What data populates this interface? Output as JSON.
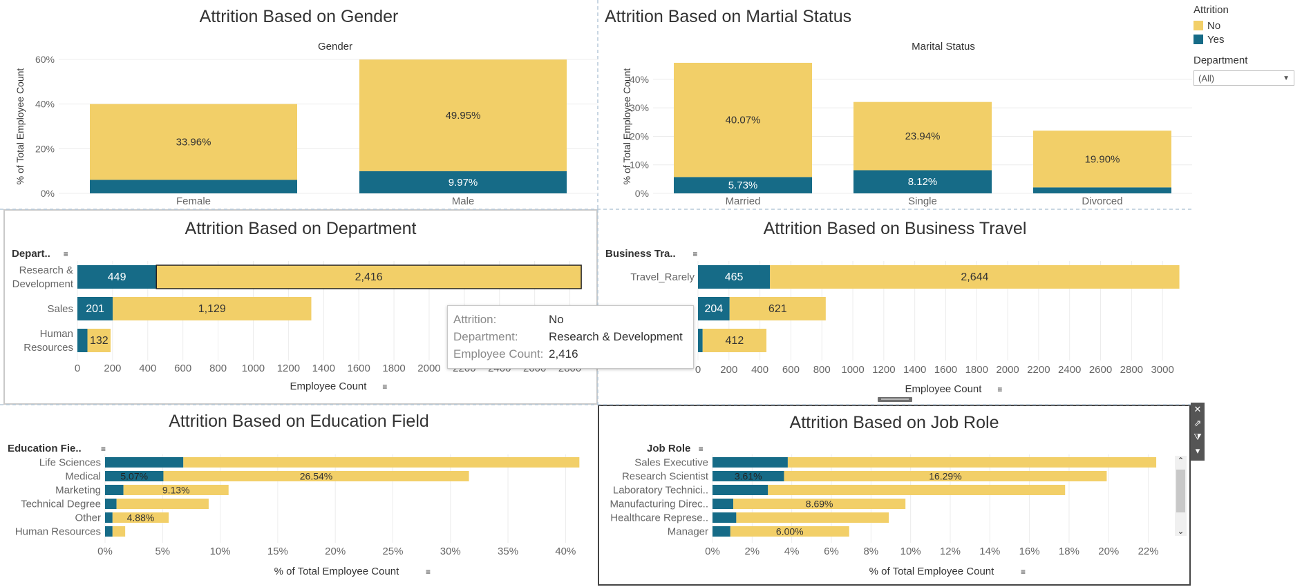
{
  "colors": {
    "no": "#f2cf68",
    "yes": "#166b87",
    "grid": "#ececec",
    "axis": "#666666",
    "label": "#333333"
  },
  "legend": {
    "title": "Attrition",
    "items": [
      "No",
      "Yes"
    ]
  },
  "filter": {
    "label": "Department",
    "value": "(All)"
  },
  "tooltip": {
    "rows": [
      {
        "key": "Attrition:",
        "value": "No"
      },
      {
        "key": "Department:",
        "value": "Research & Development"
      },
      {
        "key": "Employee Count:",
        "value": "2,416"
      }
    ]
  },
  "chart_data": [
    {
      "id": "gender",
      "type": "bar",
      "title": "Attrition Based on Gender",
      "header": "Gender",
      "ylabel": "% of Total Employee Count",
      "ylim": [
        0,
        60
      ],
      "yticks": [
        0,
        20,
        40,
        60
      ],
      "ytick_labels": [
        "0%",
        "20%",
        "40%",
        "60%"
      ],
      "categories": [
        "Female",
        "Male"
      ],
      "series": [
        {
          "name": "Yes",
          "values": [
            6.05,
            9.97
          ],
          "labels": [
            "",
            "9.97%"
          ]
        },
        {
          "name": "No",
          "values": [
            33.96,
            49.95
          ],
          "labels": [
            "33.96%",
            "49.95%"
          ]
        }
      ]
    },
    {
      "id": "marital",
      "type": "bar",
      "title": "Attrition Based on Martial Status",
      "header": "Marital Status",
      "ylabel": "% of Total Employee Count",
      "ylim": [
        0,
        47
      ],
      "yticks": [
        0,
        10,
        20,
        30,
        40
      ],
      "ytick_labels": [
        "0%",
        "10%",
        "20%",
        "30%",
        "40%"
      ],
      "categories": [
        "Married",
        "Single",
        "Divorced"
      ],
      "series": [
        {
          "name": "Yes",
          "values": [
            5.73,
            8.12,
            2.1
          ],
          "labels": [
            "5.73%",
            "8.12%",
            ""
          ]
        },
        {
          "name": "No",
          "values": [
            40.07,
            23.94,
            19.9
          ],
          "labels": [
            "40.07%",
            "23.94%",
            "19.90%"
          ]
        }
      ]
    },
    {
      "id": "department",
      "type": "bar",
      "orientation": "horizontal",
      "title": "Attrition Based on Department",
      "header": "Depart..",
      "xlabel": "Employee Count",
      "xlim": [
        0,
        2900
      ],
      "xticks": [
        0,
        200,
        400,
        600,
        800,
        1000,
        1200,
        1400,
        1600,
        1800,
        2000,
        2200,
        2400,
        2600,
        2800
      ],
      "xtick_labels": [
        "0",
        "200",
        "400",
        "600",
        "800",
        "1000",
        "1200",
        "1400",
        "1600",
        "1800",
        "2000",
        "2200",
        "2400",
        "2600",
        "2800"
      ],
      "categories": [
        "Research & Development",
        "Sales",
        "Human Resources"
      ],
      "category_lines": [
        [
          "Research &",
          "Development"
        ],
        [
          "Sales"
        ],
        [
          "Human",
          "Resources"
        ]
      ],
      "series": [
        {
          "name": "Yes",
          "values": [
            449,
            201,
            57
          ],
          "labels": [
            "449",
            "201",
            ""
          ]
        },
        {
          "name": "No",
          "values": [
            2416,
            1129,
            132
          ],
          "labels": [
            "2,416",
            "1,129",
            "132"
          ]
        }
      ]
    },
    {
      "id": "travel",
      "type": "bar",
      "orientation": "horizontal",
      "title": "Attrition Based on Business Travel",
      "header": "Business Tra..",
      "xlabel": "Employee Count",
      "xlim": [
        0,
        3160
      ],
      "xticks": [
        0,
        200,
        400,
        600,
        800,
        1000,
        1200,
        1400,
        1600,
        1800,
        2000,
        2200,
        2400,
        2600,
        2800,
        3000
      ],
      "xtick_labels": [
        "0",
        "200",
        "400",
        "600",
        "800",
        "1000",
        "1200",
        "1400",
        "1600",
        "1800",
        "2000",
        "2200",
        "2400",
        "2600",
        "2800",
        "3000"
      ],
      "categories": [
        "Travel_Rarely",
        "",
        ""
      ],
      "category_lines": [
        [
          "Travel_Rarely"
        ],
        [],
        []
      ],
      "series": [
        {
          "name": "Yes",
          "values": [
            465,
            204,
            30
          ],
          "labels": [
            "465",
            "204",
            ""
          ]
        },
        {
          "name": "No",
          "values": [
            2644,
            621,
            412
          ],
          "labels": [
            "2,644",
            "621",
            "412"
          ]
        }
      ]
    },
    {
      "id": "education",
      "type": "bar",
      "orientation": "horizontal",
      "title": "Attrition Based on Education Field",
      "header": "Education Fie..",
      "xlabel": "% of Total Employee Count",
      "xlim": [
        0,
        42.5
      ],
      "xticks": [
        0,
        5,
        10,
        15,
        20,
        25,
        30,
        35,
        40
      ],
      "xtick_labels": [
        "0%",
        "5%",
        "10%",
        "15%",
        "20%",
        "25%",
        "30%",
        "35%",
        "40%"
      ],
      "categories": [
        "Life Sciences",
        "Medical",
        "Marketing",
        "Technical Degree",
        "Other",
        "Human Resources"
      ],
      "category_lines": [
        [
          "Life Sciences"
        ],
        [
          "Medical"
        ],
        [
          "Marketing"
        ],
        [
          "Technical Degree"
        ],
        [
          "Other"
        ],
        [
          "Human Resources"
        ]
      ],
      "series": [
        {
          "name": "Yes",
          "values": [
            6.8,
            5.07,
            1.6,
            1.0,
            0.65,
            0.65
          ],
          "labels": [
            "",
            "5.07%",
            "",
            "",
            "",
            ""
          ]
        },
        {
          "name": "No",
          "values": [
            34.4,
            26.54,
            9.13,
            8.0,
            4.88,
            1.1
          ],
          "labels": [
            "",
            "26.54%",
            "9.13%",
            "",
            "4.88%",
            ""
          ]
        }
      ]
    },
    {
      "id": "jobrole",
      "type": "bar",
      "orientation": "horizontal",
      "title": "Attrition Based on Job Role",
      "header": "Job Role",
      "xlabel": "% of Total Employee Count",
      "xlim": [
        0,
        23.2
      ],
      "xticks": [
        0,
        2,
        4,
        6,
        8,
        10,
        12,
        14,
        16,
        18,
        20,
        22
      ],
      "xtick_labels": [
        "0%",
        "2%",
        "4%",
        "6%",
        "8%",
        "10%",
        "12%",
        "14%",
        "16%",
        "18%",
        "20%",
        "22%"
      ],
      "categories": [
        "Sales Executive",
        "Research Scientist",
        "Laboratory Technici..",
        "Manufacturing Direc..",
        "Healthcare Represe..",
        "Manager"
      ],
      "category_lines": [
        [
          "Sales Executive"
        ],
        [
          "Research Scientist"
        ],
        [
          "Laboratory Technici.."
        ],
        [
          "Manufacturing Direc.."
        ],
        [
          "Healthcare Represe.."
        ],
        [
          "Manager"
        ]
      ],
      "series": [
        {
          "name": "Yes",
          "values": [
            3.8,
            3.61,
            2.8,
            1.05,
            1.2,
            0.9
          ],
          "labels": [
            "",
            "3.61%",
            "",
            "",
            "",
            ""
          ]
        },
        {
          "name": "No",
          "values": [
            18.6,
            16.29,
            15.0,
            8.69,
            7.7,
            6.0
          ],
          "labels": [
            "",
            "16.29%",
            "",
            "8.69%",
            "",
            "6.00%"
          ]
        }
      ]
    }
  ]
}
